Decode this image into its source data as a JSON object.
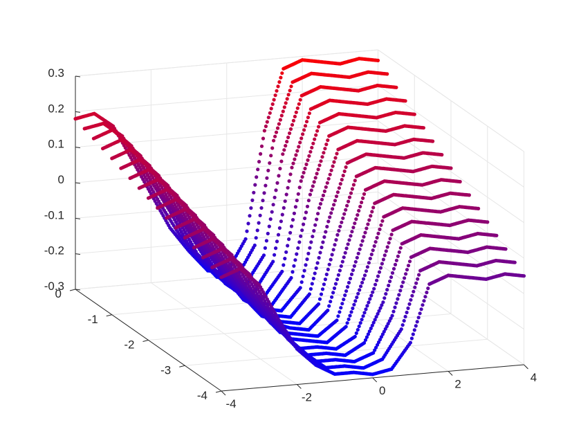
{
  "chart_data": {
    "type": "scatter",
    "title": "",
    "xlabel": "",
    "ylabel": "",
    "zlabel": "",
    "grid": true,
    "xlim": [
      -4,
      4
    ],
    "ylim": [
      -4,
      0
    ],
    "zlim": [
      -0.3,
      0.3
    ],
    "x_ticks": [
      -4,
      -2,
      0,
      2,
      4
    ],
    "y_ticks": [
      0,
      -1,
      -2,
      -3,
      -4
    ],
    "z_ticks": [
      0.3,
      0.2,
      0.1,
      0,
      -0.1,
      -0.2,
      -0.3
    ],
    "x_tick_labels": [
      "-4",
      "-2",
      "0",
      "2",
      "4"
    ],
    "y_tick_labels": [
      "0",
      "-1",
      "-2",
      "-3",
      "-4"
    ],
    "z_tick_labels": [
      "0.3",
      "0.2",
      "0.1",
      "0",
      "-0.1",
      "-0.2",
      "-0.3"
    ],
    "color_map": {
      "high": "#ff0000",
      "low": "#0000ff"
    },
    "series": [
      {
        "y": 0.0,
        "points": [
          [
            -4,
            0.18
          ],
          [
            -3.5,
            0.19
          ],
          [
            -3,
            0.15
          ],
          [
            -2.5,
            0.05
          ],
          [
            -2,
            -0.05
          ],
          [
            -1.5,
            -0.15
          ],
          [
            -1,
            -0.22
          ],
          [
            -0.5,
            -0.28
          ],
          [
            0,
            -0.29
          ],
          [
            0.5,
            -0.2
          ],
          [
            1,
            0.1
          ],
          [
            1.5,
            0.27
          ],
          [
            2,
            0.29
          ],
          [
            2.5,
            0.28
          ],
          [
            3,
            0.27
          ],
          [
            3.5,
            0.28
          ],
          [
            4,
            0.27
          ]
        ]
      },
      {
        "y": -0.25,
        "points": [
          [
            -4,
            0.17
          ],
          [
            -3.5,
            0.18
          ],
          [
            -3,
            0.14
          ],
          [
            -2.5,
            0.04
          ],
          [
            -2,
            -0.06
          ],
          [
            -1.5,
            -0.15
          ],
          [
            -1,
            -0.22
          ],
          [
            -0.5,
            -0.28
          ],
          [
            0,
            -0.29
          ],
          [
            0.5,
            -0.2
          ],
          [
            1,
            0.09
          ],
          [
            1.5,
            0.25
          ],
          [
            2,
            0.27
          ],
          [
            2.5,
            0.26
          ],
          [
            3,
            0.25
          ],
          [
            3.5,
            0.26
          ],
          [
            4,
            0.25
          ]
        ]
      },
      {
        "y": -0.5,
        "points": [
          [
            -4,
            0.16
          ],
          [
            -3.5,
            0.18
          ],
          [
            -3,
            0.13
          ],
          [
            -2.5,
            0.03
          ],
          [
            -2,
            -0.06
          ],
          [
            -1.5,
            -0.16
          ],
          [
            -1,
            -0.23
          ],
          [
            -0.5,
            -0.28
          ],
          [
            0,
            -0.29
          ],
          [
            0.5,
            -0.21
          ],
          [
            1,
            0.07
          ],
          [
            1.5,
            0.23
          ],
          [
            2,
            0.25
          ],
          [
            2.5,
            0.24
          ],
          [
            3,
            0.23
          ],
          [
            3.5,
            0.24
          ],
          [
            4,
            0.23
          ]
        ]
      },
      {
        "y": -0.75,
        "points": [
          [
            -4,
            0.15
          ],
          [
            -3.5,
            0.17
          ],
          [
            -3,
            0.12
          ],
          [
            -2.5,
            0.02
          ],
          [
            -2,
            -0.07
          ],
          [
            -1.5,
            -0.17
          ],
          [
            -1,
            -0.23
          ],
          [
            -0.5,
            -0.28
          ],
          [
            0,
            -0.29
          ],
          [
            0.5,
            -0.21
          ],
          [
            1,
            0.05
          ],
          [
            1.5,
            0.21
          ],
          [
            2,
            0.23
          ],
          [
            2.5,
            0.22
          ],
          [
            3,
            0.21
          ],
          [
            3.5,
            0.22
          ],
          [
            4,
            0.21
          ]
        ]
      },
      {
        "y": -1.0,
        "points": [
          [
            -4,
            0.14
          ],
          [
            -3.5,
            0.16
          ],
          [
            -3,
            0.11
          ],
          [
            -2.5,
            0.01
          ],
          [
            -2,
            -0.08
          ],
          [
            -1.5,
            -0.17
          ],
          [
            -1,
            -0.24
          ],
          [
            -0.5,
            -0.28
          ],
          [
            0,
            -0.29
          ],
          [
            0.5,
            -0.22
          ],
          [
            1,
            0.03
          ],
          [
            1.5,
            0.19
          ],
          [
            2,
            0.21
          ],
          [
            2.5,
            0.2
          ],
          [
            3,
            0.19
          ],
          [
            3.5,
            0.2
          ],
          [
            4,
            0.19
          ]
        ]
      },
      {
        "y": -1.25,
        "points": [
          [
            -4,
            0.13
          ],
          [
            -3.5,
            0.15
          ],
          [
            -3,
            0.1
          ],
          [
            -2.5,
            0.0
          ],
          [
            -2,
            -0.09
          ],
          [
            -1.5,
            -0.18
          ],
          [
            -1,
            -0.24
          ],
          [
            -0.5,
            -0.28
          ],
          [
            0,
            -0.29
          ],
          [
            0.5,
            -0.22
          ],
          [
            1,
            0.01
          ],
          [
            1.5,
            0.17
          ],
          [
            2,
            0.19
          ],
          [
            2.5,
            0.18
          ],
          [
            3,
            0.17
          ],
          [
            3.5,
            0.18
          ],
          [
            4,
            0.17
          ]
        ]
      },
      {
        "y": -1.5,
        "points": [
          [
            -4,
            0.12
          ],
          [
            -3.5,
            0.14
          ],
          [
            -3,
            0.09
          ],
          [
            -2.5,
            -0.01
          ],
          [
            -2,
            -0.1
          ],
          [
            -1.5,
            -0.18
          ],
          [
            -1,
            -0.25
          ],
          [
            -0.5,
            -0.28
          ],
          [
            0,
            -0.29
          ],
          [
            0.5,
            -0.23
          ],
          [
            1,
            -0.01
          ],
          [
            1.5,
            0.15
          ],
          [
            2,
            0.17
          ],
          [
            2.5,
            0.16
          ],
          [
            3,
            0.15
          ],
          [
            3.5,
            0.16
          ],
          [
            4,
            0.15
          ]
        ]
      },
      {
        "y": -1.75,
        "points": [
          [
            -4,
            0.11
          ],
          [
            -3.5,
            0.13
          ],
          [
            -3,
            0.08
          ],
          [
            -2.5,
            -0.02
          ],
          [
            -2,
            -0.11
          ],
          [
            -1.5,
            -0.19
          ],
          [
            -1,
            -0.25
          ],
          [
            -0.5,
            -0.28
          ],
          [
            0,
            -0.29
          ],
          [
            0.5,
            -0.23
          ],
          [
            1,
            -0.03
          ],
          [
            1.5,
            0.13
          ],
          [
            2,
            0.15
          ],
          [
            2.5,
            0.14
          ],
          [
            3,
            0.13
          ],
          [
            3.5,
            0.14
          ],
          [
            4,
            0.13
          ]
        ]
      },
      {
        "y": -2.0,
        "points": [
          [
            -4,
            0.1
          ],
          [
            -3.5,
            0.12
          ],
          [
            -3,
            0.07
          ],
          [
            -2.5,
            -0.03
          ],
          [
            -2,
            -0.12
          ],
          [
            -1.5,
            -0.2
          ],
          [
            -1,
            -0.26
          ],
          [
            -0.5,
            -0.28
          ],
          [
            0,
            -0.29
          ],
          [
            0.5,
            -0.24
          ],
          [
            1,
            -0.05
          ],
          [
            1.5,
            0.11
          ],
          [
            2,
            0.13
          ],
          [
            2.5,
            0.12
          ],
          [
            3,
            0.11
          ],
          [
            3.5,
            0.12
          ],
          [
            4,
            0.11
          ]
        ]
      },
      {
        "y": -2.25,
        "points": [
          [
            -4,
            0.09
          ],
          [
            -3.5,
            0.11
          ],
          [
            -3,
            0.06
          ],
          [
            -2.5,
            -0.04
          ],
          [
            -2,
            -0.13
          ],
          [
            -1.5,
            -0.2
          ],
          [
            -1,
            -0.26
          ],
          [
            -0.5,
            -0.28
          ],
          [
            0,
            -0.29
          ],
          [
            0.5,
            -0.24
          ],
          [
            1,
            -0.07
          ],
          [
            1.5,
            0.09
          ],
          [
            2,
            0.11
          ],
          [
            2.5,
            0.1
          ],
          [
            3,
            0.09
          ],
          [
            3.5,
            0.1
          ],
          [
            4,
            0.09
          ]
        ]
      },
      {
        "y": -2.5,
        "points": [
          [
            -4,
            0.08
          ],
          [
            -3.5,
            0.1
          ],
          [
            -3,
            0.05
          ],
          [
            -2.5,
            -0.05
          ],
          [
            -2,
            -0.14
          ],
          [
            -1.5,
            -0.21
          ],
          [
            -1,
            -0.27
          ],
          [
            -0.5,
            -0.28
          ],
          [
            0,
            -0.29
          ],
          [
            0.5,
            -0.25
          ],
          [
            1,
            -0.09
          ],
          [
            1.5,
            0.07
          ],
          [
            2,
            0.09
          ],
          [
            2.5,
            0.08
          ],
          [
            3,
            0.07
          ],
          [
            3.5,
            0.08
          ],
          [
            4,
            0.07
          ]
        ]
      },
      {
        "y": -2.75,
        "points": [
          [
            -4,
            0.07
          ],
          [
            -3.5,
            0.09
          ],
          [
            -3,
            0.04
          ],
          [
            -2.5,
            -0.06
          ],
          [
            -2,
            -0.15
          ],
          [
            -1.5,
            -0.22
          ],
          [
            -1,
            -0.27
          ],
          [
            -0.5,
            -0.28
          ],
          [
            0,
            -0.29
          ],
          [
            0.5,
            -0.25
          ],
          [
            1,
            -0.11
          ],
          [
            1.5,
            0.05
          ],
          [
            2,
            0.07
          ],
          [
            2.5,
            0.06
          ],
          [
            3,
            0.05
          ],
          [
            3.5,
            0.06
          ],
          [
            4,
            0.05
          ]
        ]
      },
      {
        "y": -3.0,
        "points": [
          [
            -4,
            0.06
          ],
          [
            -3.5,
            0.08
          ],
          [
            -3,
            0.03
          ],
          [
            -2.5,
            -0.07
          ],
          [
            -2,
            -0.16
          ],
          [
            -1.5,
            -0.22
          ],
          [
            -1,
            -0.28
          ],
          [
            -0.5,
            -0.28
          ],
          [
            0,
            -0.29
          ],
          [
            0.5,
            -0.26
          ],
          [
            1,
            -0.13
          ],
          [
            1.5,
            0.03
          ],
          [
            2,
            0.05
          ],
          [
            2.5,
            0.04
          ],
          [
            3,
            0.03
          ],
          [
            3.5,
            0.04
          ],
          [
            4,
            0.03
          ]
        ]
      },
      {
        "y": -3.25,
        "points": [
          [
            -4,
            0.05
          ],
          [
            -3.5,
            0.07
          ],
          [
            -3,
            0.02
          ],
          [
            -2.5,
            -0.08
          ],
          [
            -2,
            -0.17
          ],
          [
            -1.5,
            -0.23
          ],
          [
            -1,
            -0.28
          ],
          [
            -0.5,
            -0.28
          ],
          [
            0,
            -0.29
          ],
          [
            0.5,
            -0.26
          ],
          [
            1,
            -0.15
          ],
          [
            1.5,
            0.01
          ],
          [
            2,
            0.03
          ],
          [
            2.5,
            0.02
          ],
          [
            3,
            0.01
          ],
          [
            3.5,
            0.02
          ],
          [
            4,
            0.01
          ]
        ]
      },
      {
        "y": -3.5,
        "points": [
          [
            -4,
            0.04
          ],
          [
            -3.5,
            0.06
          ],
          [
            -3,
            0.01
          ],
          [
            -2.5,
            -0.09
          ],
          [
            -2,
            -0.18
          ],
          [
            -1.5,
            -0.24
          ],
          [
            -1,
            -0.28
          ],
          [
            -0.5,
            -0.28
          ],
          [
            0,
            -0.29
          ],
          [
            0.5,
            -0.27
          ],
          [
            1,
            -0.17
          ],
          [
            1.5,
            -0.01
          ],
          [
            2,
            0.01
          ],
          [
            2.5,
            0.0
          ],
          [
            3,
            -0.01
          ],
          [
            3.5,
            0.0
          ],
          [
            4,
            -0.01
          ]
        ]
      },
      {
        "y": -3.75,
        "points": [
          [
            -4,
            0.03
          ],
          [
            -3.5,
            0.05
          ],
          [
            -3,
            0.0
          ],
          [
            -2.5,
            -0.1
          ],
          [
            -2,
            -0.19
          ],
          [
            -1.5,
            -0.24
          ],
          [
            -1,
            -0.28
          ],
          [
            -0.5,
            -0.28
          ],
          [
            0,
            -0.29
          ],
          [
            0.5,
            -0.27
          ],
          [
            1,
            -0.19
          ],
          [
            1.5,
            -0.03
          ],
          [
            2,
            -0.01
          ],
          [
            2.5,
            -0.02
          ],
          [
            3,
            -0.03
          ],
          [
            3.5,
            -0.02
          ],
          [
            4,
            -0.03
          ]
        ]
      },
      {
        "y": -4.0,
        "points": [
          [
            -4,
            0.02
          ],
          [
            -3.5,
            0.04
          ],
          [
            -3,
            -0.01
          ],
          [
            -2.5,
            -0.11
          ],
          [
            -2,
            -0.2
          ],
          [
            -1.5,
            -0.25
          ],
          [
            -1,
            -0.28
          ],
          [
            -0.5,
            -0.28
          ],
          [
            0,
            -0.29
          ],
          [
            0.5,
            -0.28
          ],
          [
            1,
            -0.21
          ],
          [
            1.5,
            -0.05
          ],
          [
            2,
            -0.03
          ],
          [
            2.5,
            -0.04
          ],
          [
            3,
            -0.05
          ],
          [
            3.5,
            -0.04
          ],
          [
            4,
            -0.05
          ]
        ]
      }
    ]
  }
}
